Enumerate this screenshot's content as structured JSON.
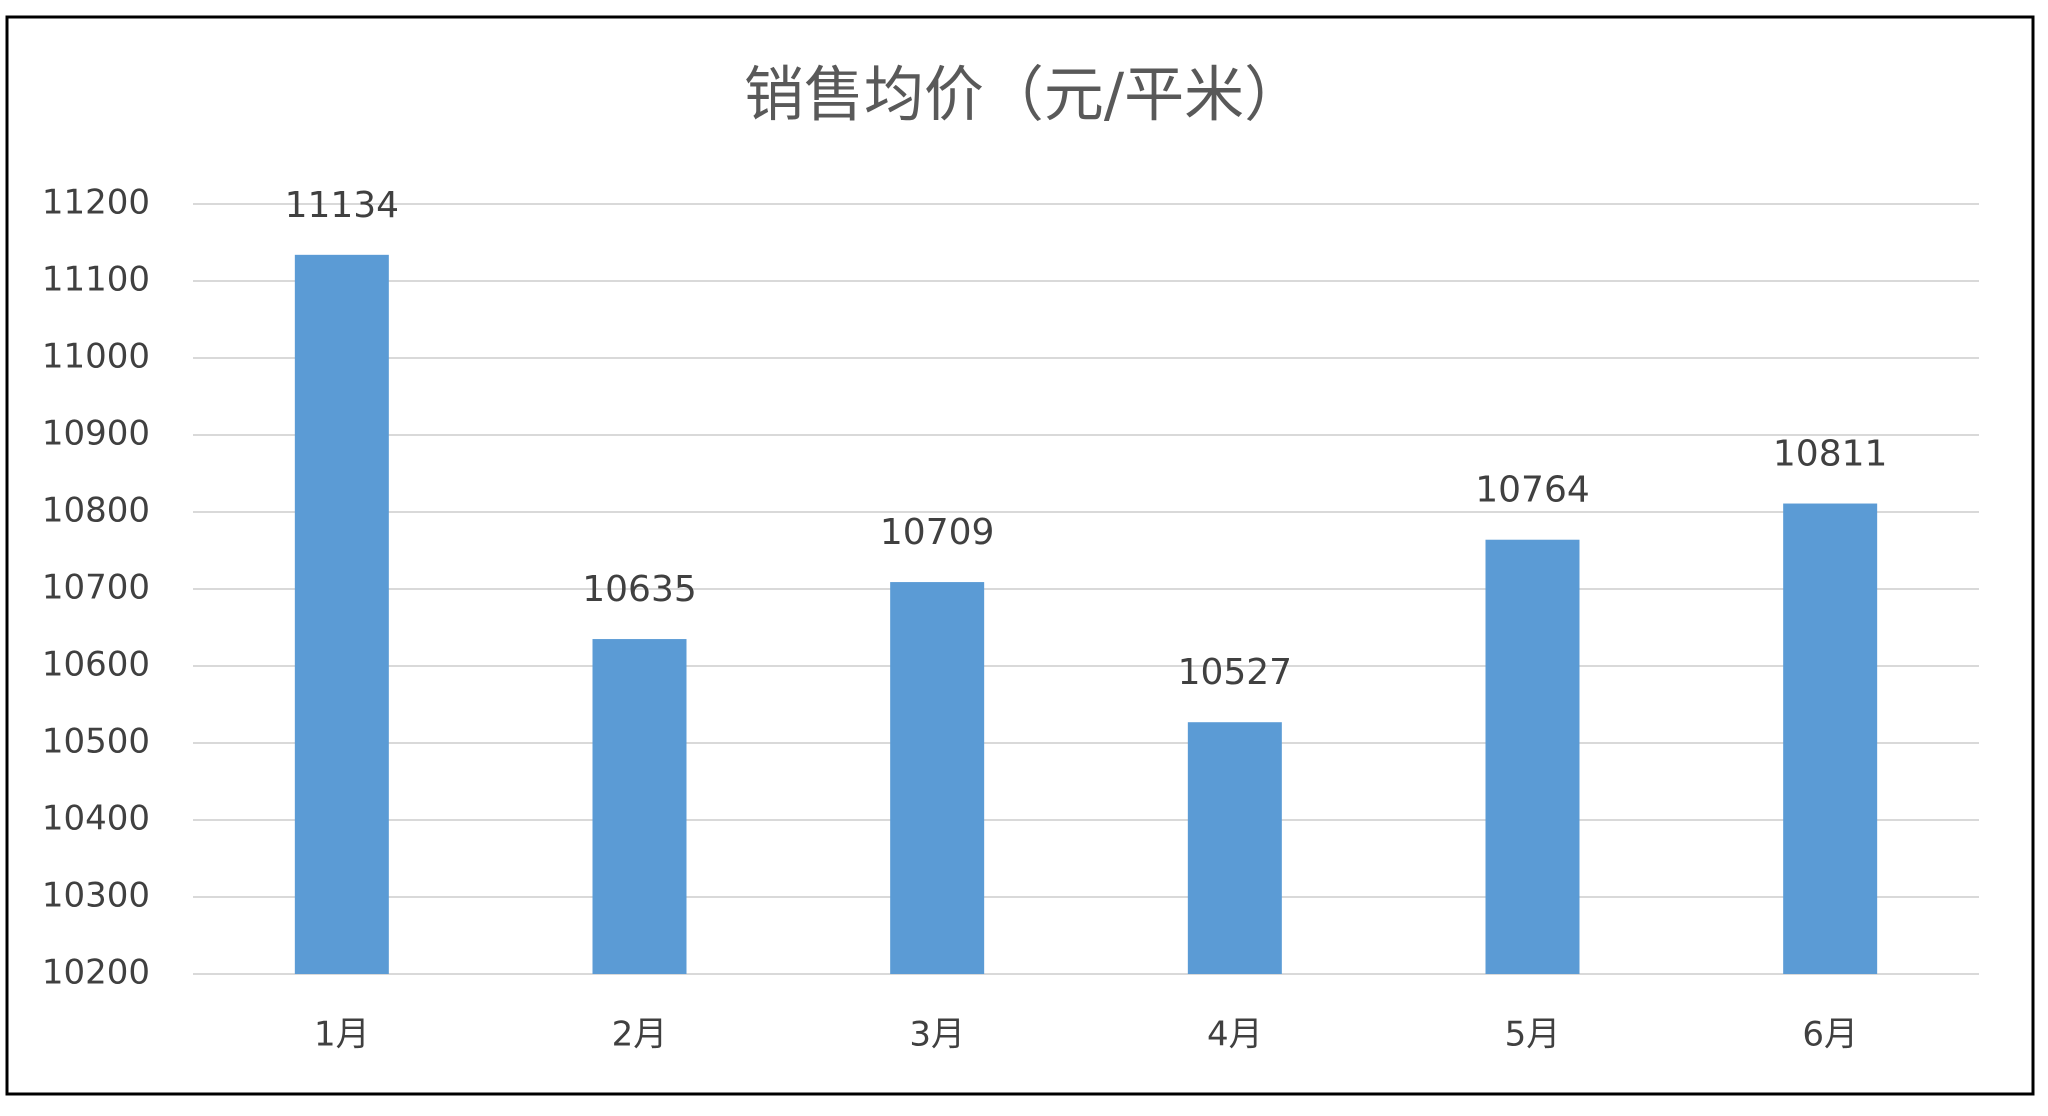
{
  "chart_data": {
    "type": "bar",
    "title": "销售均价（元/平米）",
    "categories": [
      "1月",
      "2月",
      "3月",
      "4月",
      "5月",
      "6月"
    ],
    "values": [
      11134,
      10635,
      10709,
      10527,
      10764,
      10811
    ],
    "color": "#5b9bd5",
    "ylim": [
      10200,
      11200
    ],
    "yticks": [
      10200,
      10300,
      10400,
      10500,
      10600,
      10700,
      10800,
      10900,
      11000,
      11100,
      11200
    ],
    "grid": true
  }
}
